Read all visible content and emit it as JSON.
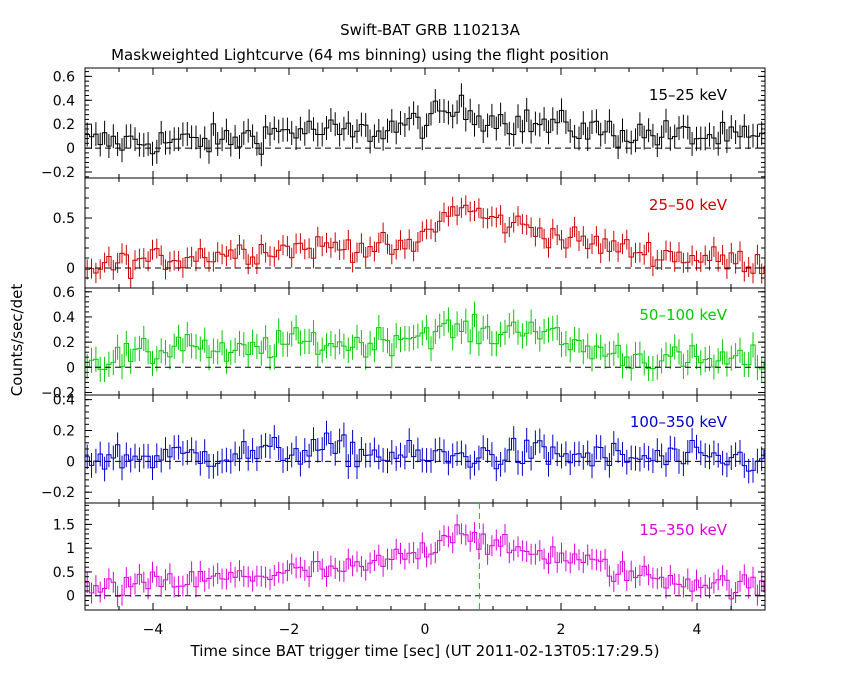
{
  "chart_data": {
    "type": "line",
    "title": "Swift-BAT GRB 110213A",
    "subtitle": "Maskweighted Lightcurve (64 ms binning) using the flight position",
    "xlabel": "Time since BAT trigger time [sec] (UT 2011-02-13T05:17:29.5)",
    "ylabel": "Counts/sec/det",
    "xlim": [
      -5,
      5
    ],
    "xticks": [
      -4,
      -2,
      0,
      2,
      4
    ],
    "xtick_labels": [
      "−4",
      "−2",
      "0",
      "2",
      "4"
    ],
    "bin_width": 0.064,
    "marker_line_x": 0.8,
    "panels": [
      {
        "name": "15-25 keV",
        "label": "15–25 keV",
        "color": "#000000",
        "ylim": [
          -0.25,
          0.67
        ],
        "yticks": [
          -0.2,
          0,
          0.2,
          0.4,
          0.6
        ],
        "ytick_labels": [
          "−0.2",
          "0",
          "0.2",
          "0.4",
          "0.6"
        ],
        "knots": [
          [
            -5,
            0.05
          ],
          [
            -3,
            0.06
          ],
          [
            -2,
            0.15
          ],
          [
            -1,
            0.12
          ],
          [
            0,
            0.22
          ],
          [
            0.5,
            0.32
          ],
          [
            1,
            0.25
          ],
          [
            1.6,
            0.2
          ],
          [
            2,
            0.18
          ],
          [
            3,
            0.12
          ],
          [
            4,
            0.1
          ],
          [
            5,
            0.06
          ]
        ],
        "noise": 0.09,
        "err": 0.1
      },
      {
        "name": "25-50 keV",
        "label": "25–50 keV",
        "color": "#cc0000",
        "ylim": [
          -0.2,
          0.9
        ],
        "yticks": [
          0,
          0.5
        ],
        "ytick_labels": [
          "0",
          "0.5"
        ],
        "knots": [
          [
            -5,
            0.0
          ],
          [
            -4,
            0.08
          ],
          [
            -3,
            0.15
          ],
          [
            -2,
            0.2
          ],
          [
            -1,
            0.22
          ],
          [
            -0.2,
            0.18
          ],
          [
            0,
            0.35
          ],
          [
            0.5,
            0.62
          ],
          [
            1,
            0.48
          ],
          [
            1.6,
            0.4
          ],
          [
            2,
            0.3
          ],
          [
            3,
            0.18
          ],
          [
            4,
            0.1
          ],
          [
            5,
            0.05
          ]
        ],
        "noise": 0.09,
        "err": 0.1
      },
      {
        "name": "50-100 keV",
        "label": "50–100 keV",
        "color": "#00cc00",
        "ylim": [
          -0.22,
          0.63
        ],
        "yticks": [
          -0.2,
          0,
          0.2,
          0.4,
          0.6
        ],
        "ytick_labels": [
          "−0.2",
          "0",
          "0.2",
          "0.4",
          "0.6"
        ],
        "knots": [
          [
            -5,
            0.05
          ],
          [
            -4,
            0.1
          ],
          [
            -3.5,
            0.22
          ],
          [
            -3,
            0.08
          ],
          [
            -2,
            0.2
          ],
          [
            -1,
            0.18
          ],
          [
            0,
            0.28
          ],
          [
            0.5,
            0.3
          ],
          [
            1,
            0.25
          ],
          [
            1.5,
            0.35
          ],
          [
            2,
            0.2
          ],
          [
            3,
            0.08
          ],
          [
            4,
            0.05
          ],
          [
            5,
            0.05
          ]
        ],
        "noise": 0.08,
        "err": 0.1
      },
      {
        "name": "100-350 keV",
        "label": "100–350 keV",
        "color": "#0000cc",
        "ylim": [
          -0.27,
          0.43
        ],
        "yticks": [
          -0.2,
          0,
          0.2,
          0.4
        ],
        "ytick_labels": [
          "−0.2",
          "0",
          "0.2",
          "0.4"
        ],
        "knots": [
          [
            -5,
            0.02
          ],
          [
            -2.5,
            0.05
          ],
          [
            -1.5,
            0.08
          ],
          [
            0,
            0.02
          ],
          [
            1.5,
            0.05
          ],
          [
            3,
            0.02
          ],
          [
            5,
            0.01
          ]
        ],
        "noise": 0.07,
        "err": 0.08
      },
      {
        "name": "15-350 keV",
        "label": "15–350 keV",
        "color": "#dd00dd",
        "ylim": [
          -0.3,
          1.95
        ],
        "yticks": [
          0,
          0.5,
          1,
          1.5
        ],
        "ytick_labels": [
          "0",
          "0.5",
          "1",
          "1.5"
        ],
        "knots": [
          [
            -5,
            0.1
          ],
          [
            -4,
            0.25
          ],
          [
            -3,
            0.35
          ],
          [
            -2,
            0.5
          ],
          [
            -1,
            0.55
          ],
          [
            0,
            0.95
          ],
          [
            0.5,
            1.45
          ],
          [
            1,
            1.0
          ],
          [
            2,
            0.85
          ],
          [
            3,
            0.45
          ],
          [
            4,
            0.3
          ],
          [
            5,
            0.15
          ]
        ],
        "noise": 0.18,
        "err": 0.22
      }
    ]
  }
}
